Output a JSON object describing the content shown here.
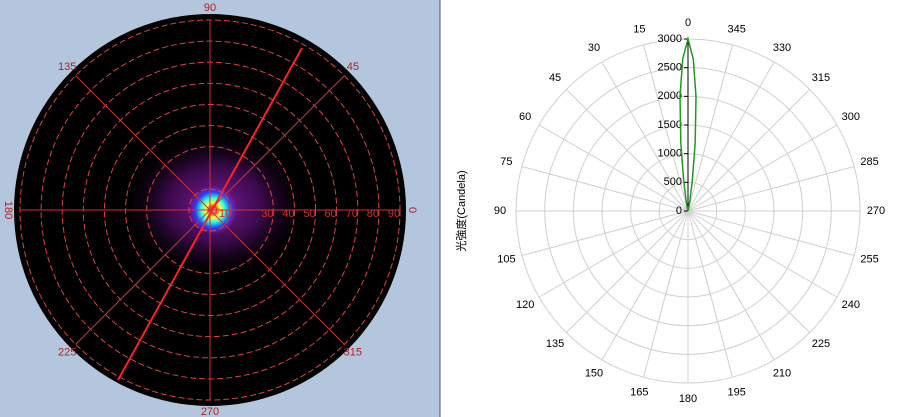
{
  "image_view": {
    "angle_ticks": [
      0,
      45,
      90,
      135,
      180,
      225,
      270,
      315
    ],
    "radius_ticks": [
      10,
      30,
      40,
      50,
      60,
      70,
      80,
      90
    ],
    "rlim": [
      0,
      90
    ]
  },
  "chart_data": {
    "type": "polar",
    "ylabel": "光強度(Candela)",
    "direction": "counterclockwise",
    "theta": [
      346,
      348,
      350,
      352,
      354,
      356,
      358,
      0,
      2,
      4,
      6,
      8,
      10,
      12,
      14
    ],
    "series": [
      {
        "color": "#1f9a1f",
        "values": [
          0,
          60,
          200,
          550,
          1200,
          2000,
          2650,
          3000,
          2650,
          2000,
          1200,
          550,
          200,
          60,
          0
        ]
      }
    ],
    "rlim": [
      0,
      3000
    ],
    "rticks": [
      0,
      500,
      1000,
      1500,
      2000,
      2500,
      3000
    ],
    "thetaticks": [
      0,
      15,
      30,
      45,
      60,
      75,
      90,
      105,
      120,
      135,
      150,
      165,
      180,
      195,
      210,
      225,
      240,
      255,
      270,
      285,
      300,
      315,
      330,
      345
    ]
  }
}
